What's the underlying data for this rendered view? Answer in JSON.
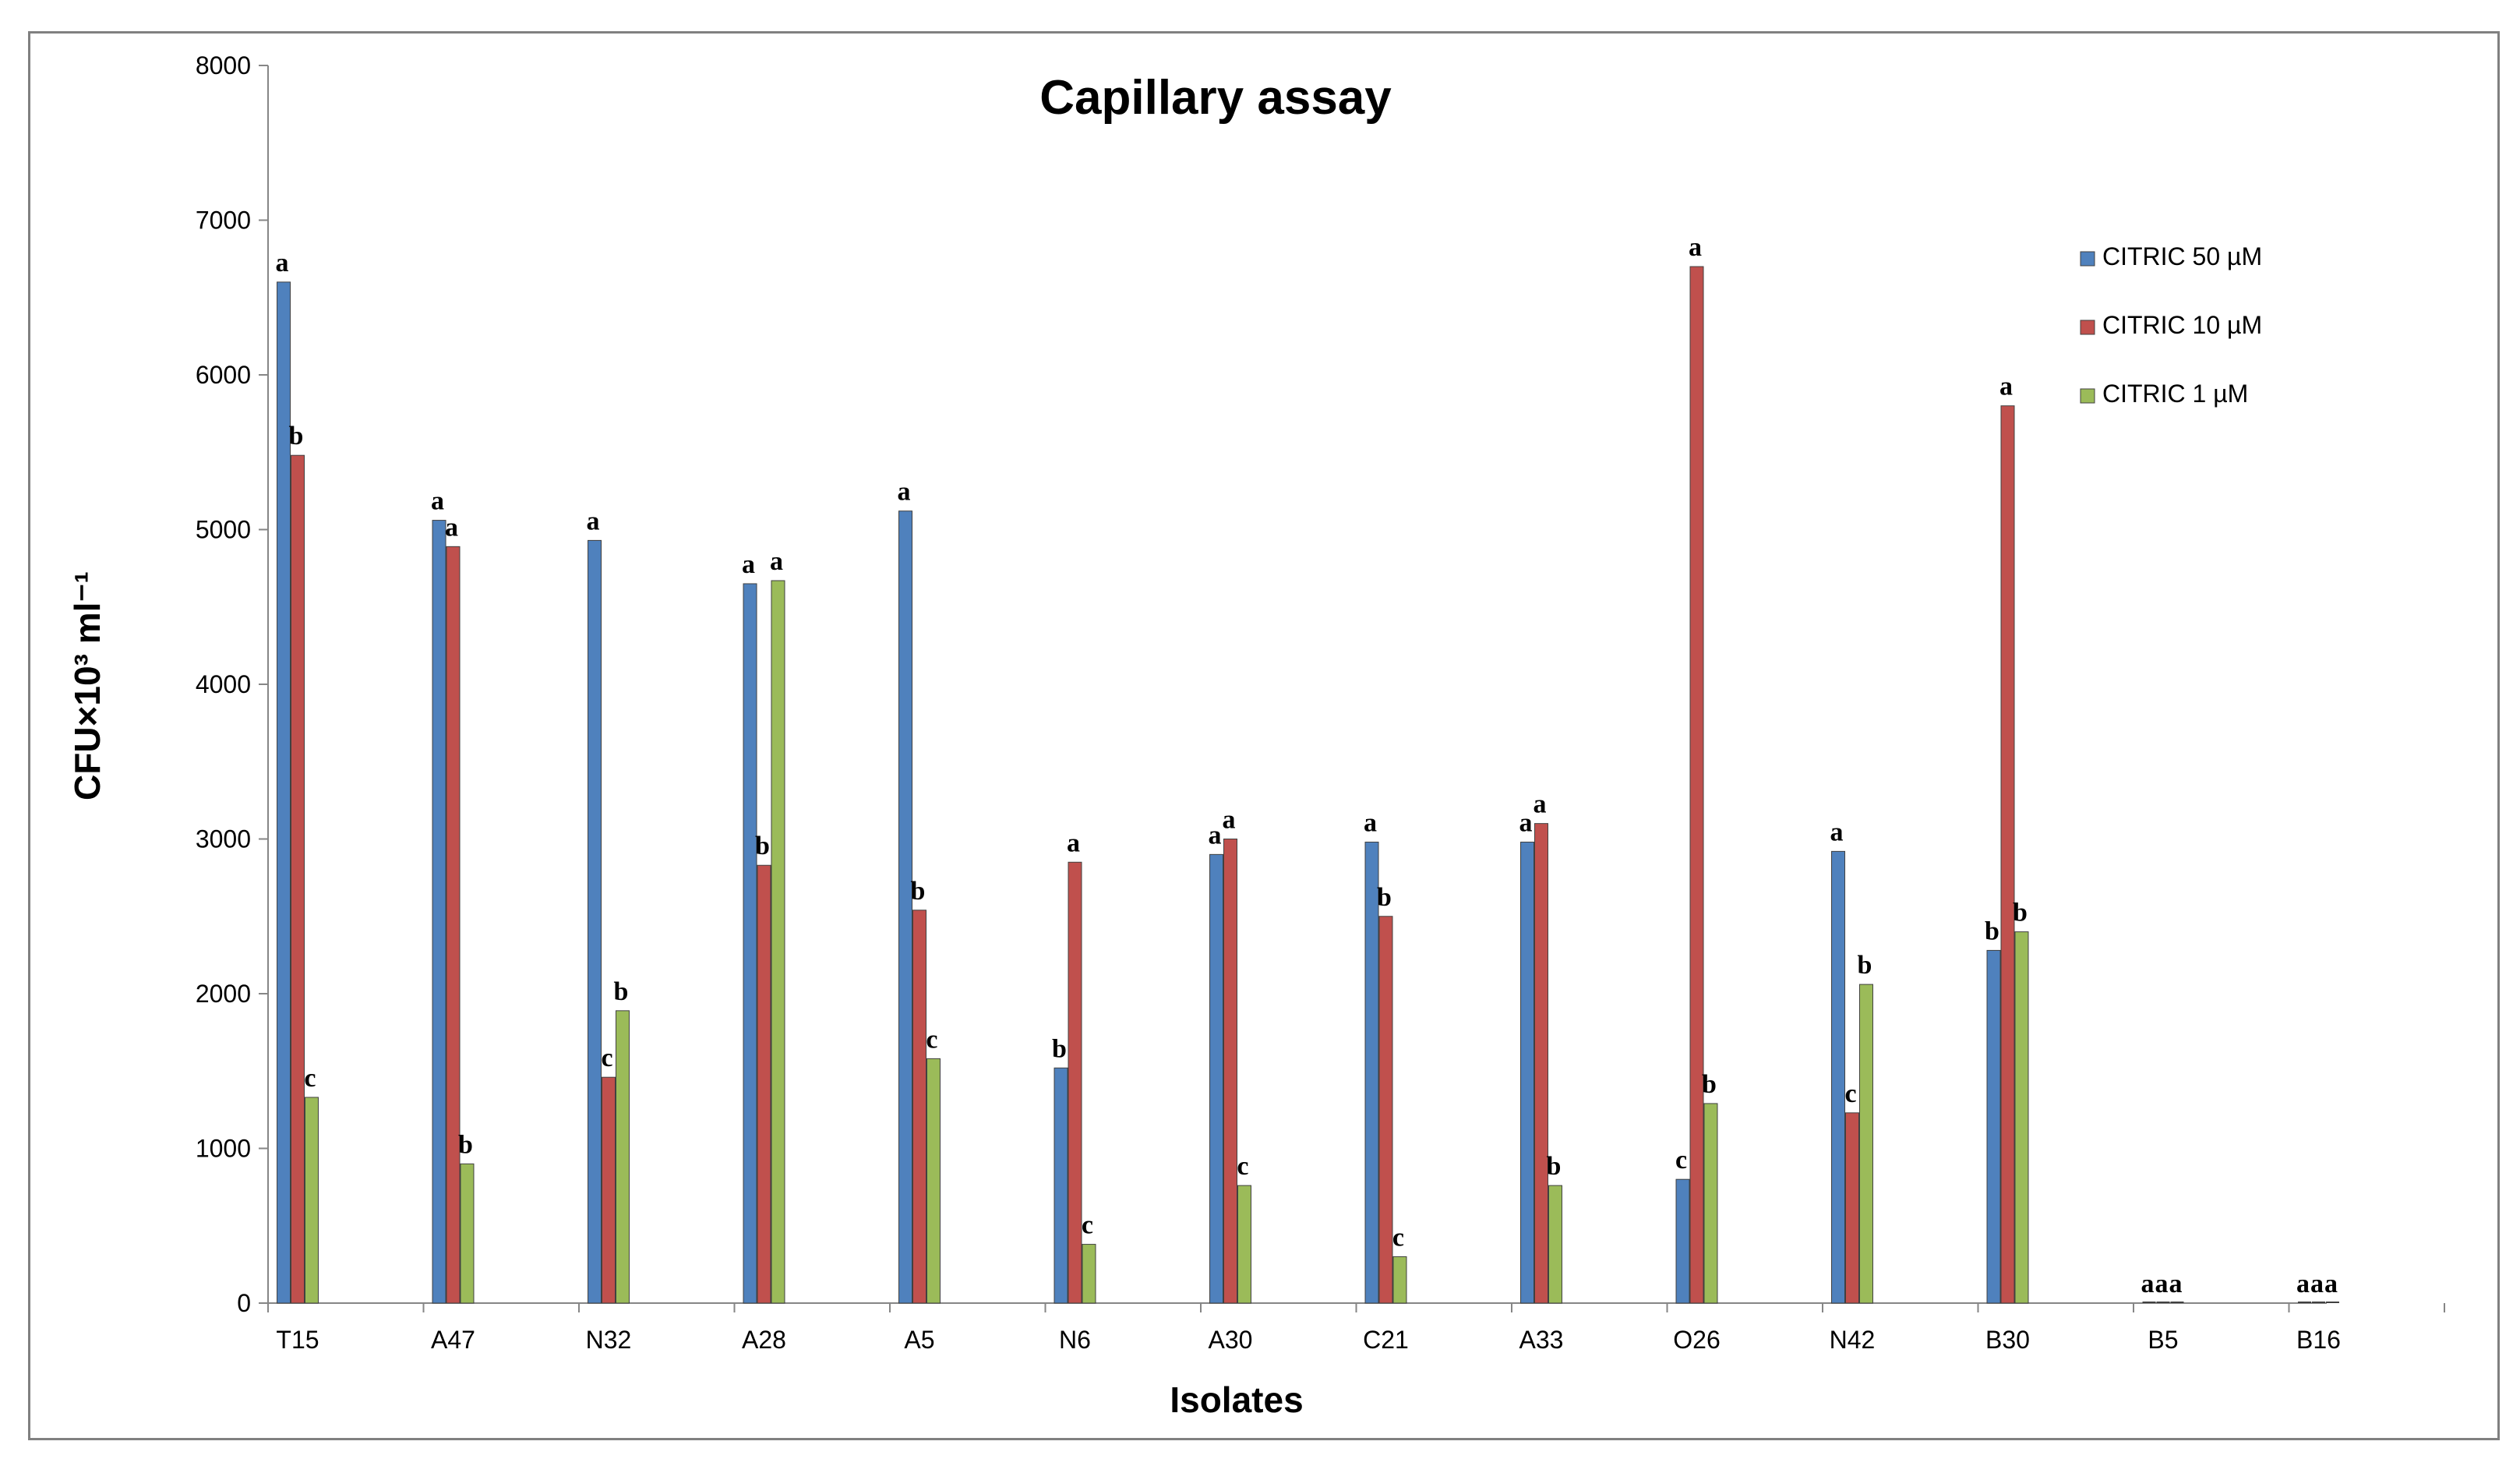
{
  "chart_data": {
    "type": "bar",
    "title": "Capillary assay",
    "xlabel": "Isolates",
    "ylabel": "CFU×10³ ml⁻¹",
    "ylim": [
      0,
      8000
    ],
    "yticks": [
      0,
      1000,
      2000,
      3000,
      4000,
      5000,
      6000,
      7000,
      8000
    ],
    "grid": false,
    "legend_position": "top-right",
    "categories": [
      "T15",
      "A47",
      "N32",
      "A28",
      "A5",
      "N6",
      "A30",
      "C21",
      "A33",
      "O26",
      "N42",
      "B30",
      "B5",
      "B16"
    ],
    "series": [
      {
        "name": "CITRIC 50 µM",
        "color": "#4f81bd",
        "values": [
          6600,
          5060,
          4930,
          4650,
          5120,
          1520,
          2900,
          2980,
          2980,
          800,
          2920,
          2280,
          0,
          0
        ],
        "labels": [
          "a",
          "a",
          "a",
          "a",
          "a",
          "b",
          "a",
          "a",
          "a",
          "c",
          "a",
          "b",
          "a",
          "a"
        ]
      },
      {
        "name": "CITRIC 10 µM",
        "color": "#c0504d",
        "values": [
          5480,
          4890,
          1460,
          2830,
          2540,
          2850,
          3000,
          2500,
          3100,
          6700,
          1230,
          5800,
          0,
          0
        ],
        "labels": [
          "b",
          "a",
          "c",
          "b",
          "b",
          "a",
          "a",
          "b",
          "a",
          "a",
          "c",
          "a",
          "a",
          "a"
        ]
      },
      {
        "name": "CITRIC 1 µM",
        "color": "#9bbb59",
        "values": [
          1330,
          900,
          1890,
          4670,
          1580,
          380,
          760,
          300,
          760,
          1290,
          2060,
          2400,
          0,
          0
        ],
        "labels": [
          "c",
          "b",
          "b",
          "a",
          "c",
          "c",
          "c",
          "c",
          "b",
          "b",
          "b",
          "b",
          "a",
          "a"
        ]
      }
    ]
  }
}
